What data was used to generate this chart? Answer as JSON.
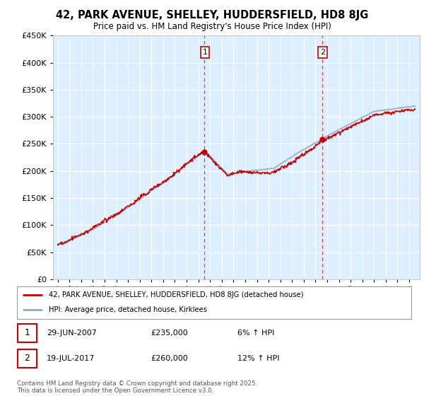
{
  "title": "42, PARK AVENUE, SHELLEY, HUDDERSFIELD, HD8 8JG",
  "subtitle": "Price paid vs. HM Land Registry's House Price Index (HPI)",
  "legend_line1": "42, PARK AVENUE, SHELLEY, HUDDERSFIELD, HD8 8JG (detached house)",
  "legend_line2": "HPI: Average price, detached house, Kirklees",
  "purchase1_date": "29-JUN-2007",
  "purchase1_price": 235000,
  "purchase1_hpi": "6% ↑ HPI",
  "purchase2_date": "19-JUL-2017",
  "purchase2_price": 260000,
  "purchase2_hpi": "12% ↑ HPI",
  "footer": "Contains HM Land Registry data © Crown copyright and database right 2025.\nThis data is licensed under the Open Government Licence v3.0.",
  "ylim": [
    0,
    450000
  ],
  "yticks": [
    0,
    50000,
    100000,
    150000,
    200000,
    250000,
    300000,
    350000,
    400000,
    450000
  ],
  "background_color": "#ffffff",
  "plot_bg_color": "#ddeeff",
  "grid_color": "#ffffff",
  "hpi_line_color": "#88aacc",
  "price_line_color": "#cc0000",
  "vline_color": "#cc0000",
  "purchase1_year": 2007.5,
  "purchase2_year": 2017.55,
  "xmin": 1994.6,
  "xmax": 2025.9
}
